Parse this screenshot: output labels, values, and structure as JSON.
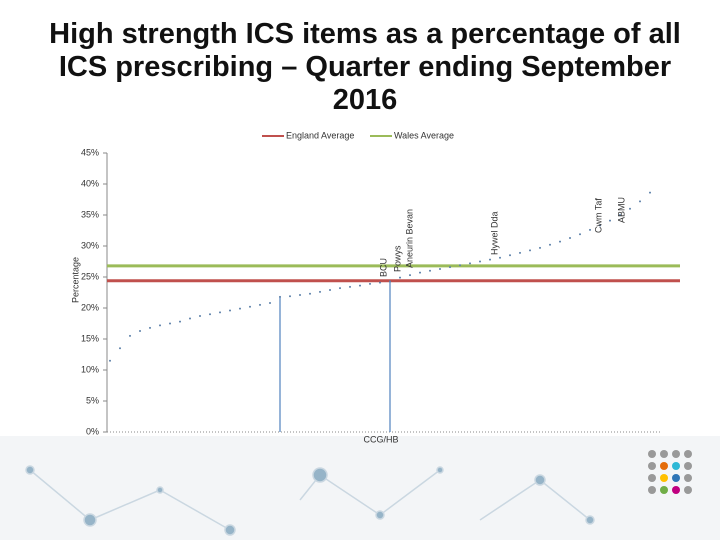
{
  "chart_data": {
    "type": "scatter",
    "title": "High strength ICS items as a percentage of all ICS prescribing – Quarter ending September 2016",
    "x_label": "CCG/HB",
    "y_label": "Percentage",
    "values": [
      11.5,
      13.5,
      15.5,
      16.3,
      16.8,
      17.2,
      17.5,
      17.8,
      18.3,
      18.7,
      19.0,
      19.3,
      19.6,
      19.9,
      20.2,
      20.5,
      20.8,
      21.8,
      21.9,
      22.1,
      22.3,
      22.6,
      22.9,
      23.2,
      23.4,
      23.6,
      23.9,
      24.1,
      24.3,
      24.9,
      25.3,
      25.7,
      26.0,
      26.3,
      26.6,
      26.9,
      27.2,
      27.5,
      27.8,
      28.1,
      28.5,
      28.9,
      29.3,
      29.7,
      30.2,
      30.7,
      31.3,
      31.9,
      32.6,
      33.3,
      34.1,
      35.0,
      36.0,
      37.2,
      38.6
    ],
    "color": "#5b7fa8",
    "highlights": [
      17,
      28
    ],
    "reference_lines": [
      {
        "name": "England Average",
        "value": 24.4,
        "color": "#c0504d"
      },
      {
        "name": "Wales Average",
        "value": 26.8,
        "color": "#9bbb59"
      }
    ],
    "annotations": [
      "BCU",
      "Powys",
      "Aneurin Bevan",
      "Hywel Dda",
      "Cwm Taf",
      "ABMU"
    ],
    "ylim": [
      0,
      45
    ],
    "yticks": [
      {
        "value": 0,
        "label": "0%"
      },
      {
        "value": 5,
        "label": "5%"
      },
      {
        "value": 10,
        "label": "10%"
      },
      {
        "value": 15,
        "label": "15%"
      },
      {
        "value": 20,
        "label": "20%"
      },
      {
        "value": 25,
        "label": "25%"
      },
      {
        "value": 30,
        "label": "30%"
      },
      {
        "value": 35,
        "label": "35%"
      },
      {
        "value": 40,
        "label": "40%"
      },
      {
        "value": 45,
        "label": "45%"
      }
    ]
  }
}
